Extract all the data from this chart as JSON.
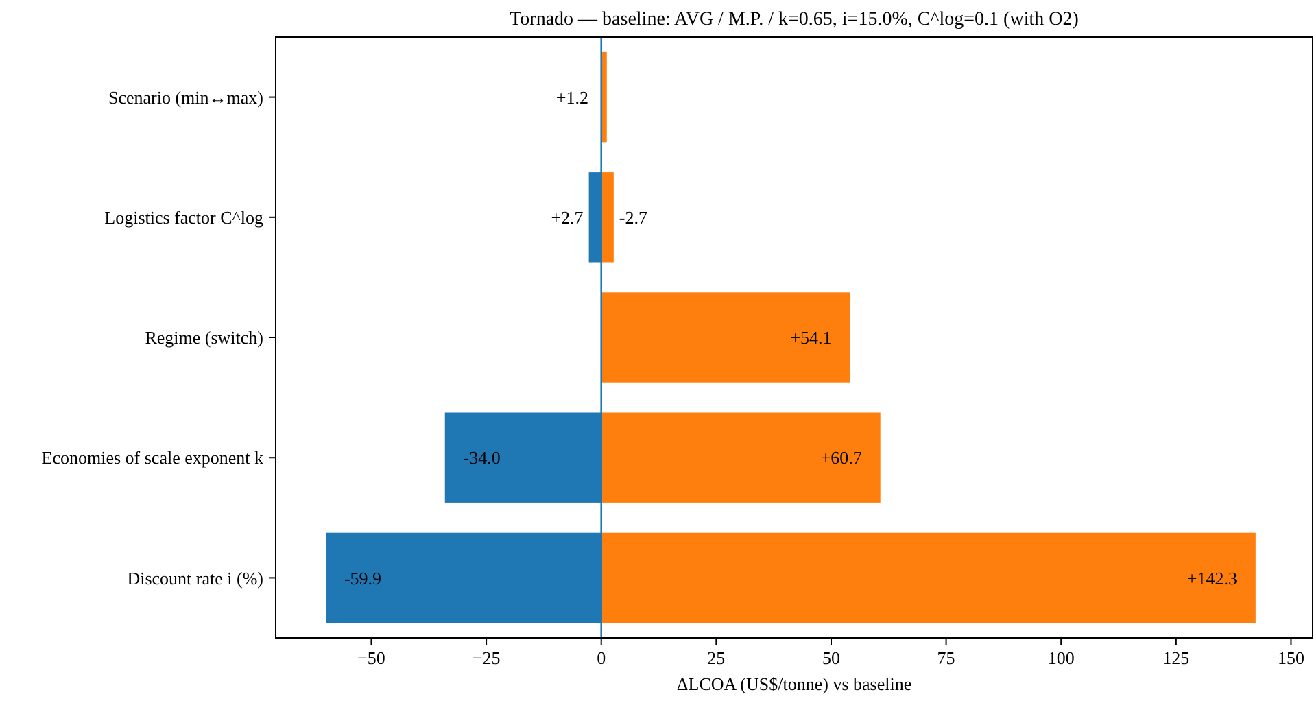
{
  "chart_data": {
    "type": "bar",
    "orientation": "horizontal",
    "stacked": true,
    "title": "Tornado — baseline: AVG / M.P. / k=0.65, i=15.0%, C^log=0.1 (with O2)",
    "xlabel": "ΔLCOA (US$/tonne) vs baseline",
    "categories": [
      "Scenario (min↔max)",
      "Logistics factor C^log",
      "Regime (switch)",
      "Economies of scale exponent k",
      "Discount rate i (%)"
    ],
    "series": [
      {
        "color": "#1f77b4",
        "values": [
          null,
          -2.7,
          null,
          -34.0,
          -59.9
        ],
        "value_labels": [
          null,
          "-2.7",
          null,
          "-34.0",
          "-59.9"
        ]
      },
      {
        "color": "#ff7f0e",
        "values": [
          1.2,
          2.7,
          54.1,
          60.7,
          142.3
        ],
        "value_labels": [
          "+1.2",
          "+2.7",
          "+54.1",
          "+60.7",
          "+142.3"
        ]
      }
    ],
    "xlim": [
      -70.8,
      154.7
    ],
    "xticks": [
      {
        "value": -50,
        "label": "−50"
      },
      {
        "value": -25,
        "label": "−25"
      },
      0,
      25,
      50,
      75,
      100,
      125,
      150
    ],
    "ref_lines": [
      {
        "axis": "x",
        "value": 0,
        "color": "#1f77b4"
      }
    ],
    "grid": false
  }
}
